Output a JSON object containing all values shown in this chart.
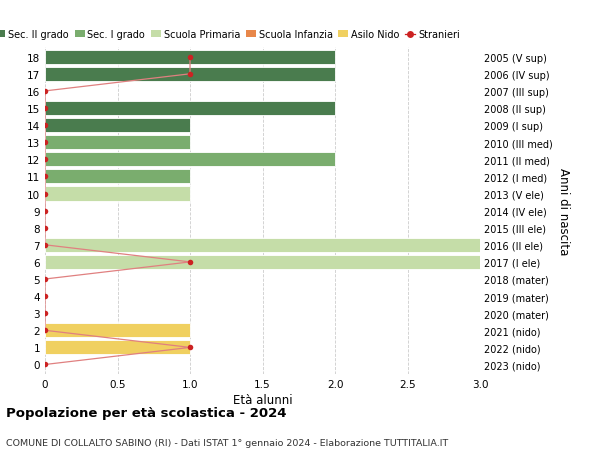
{
  "ages": [
    18,
    17,
    16,
    15,
    14,
    13,
    12,
    11,
    10,
    9,
    8,
    7,
    6,
    5,
    4,
    3,
    2,
    1,
    0
  ],
  "right_labels": [
    "2005 (V sup)",
    "2006 (IV sup)",
    "2007 (III sup)",
    "2008 (II sup)",
    "2009 (I sup)",
    "2010 (III med)",
    "2011 (II med)",
    "2012 (I med)",
    "2013 (V ele)",
    "2014 (IV ele)",
    "2015 (III ele)",
    "2016 (II ele)",
    "2017 (I ele)",
    "2018 (mater)",
    "2019 (mater)",
    "2020 (mater)",
    "2021 (nido)",
    "2022 (nido)",
    "2023 (nido)"
  ],
  "bars": [
    {
      "age": 18,
      "value": 2,
      "color": "#4a7c4e"
    },
    {
      "age": 17,
      "value": 2,
      "color": "#4a7c4e"
    },
    {
      "age": 16,
      "value": 0,
      "color": "#4a7c4e"
    },
    {
      "age": 15,
      "value": 2,
      "color": "#4a7c4e"
    },
    {
      "age": 14,
      "value": 1,
      "color": "#4a7c4e"
    },
    {
      "age": 13,
      "value": 1,
      "color": "#7aad6e"
    },
    {
      "age": 12,
      "value": 2,
      "color": "#7aad6e"
    },
    {
      "age": 11,
      "value": 1,
      "color": "#7aad6e"
    },
    {
      "age": 10,
      "value": 1,
      "color": "#c5dda8"
    },
    {
      "age": 9,
      "value": 0,
      "color": "#c5dda8"
    },
    {
      "age": 8,
      "value": 0,
      "color": "#c5dda8"
    },
    {
      "age": 7,
      "value": 3,
      "color": "#c5dda8"
    },
    {
      "age": 6,
      "value": 3,
      "color": "#c5dda8"
    },
    {
      "age": 5,
      "value": 0,
      "color": "#e8874a"
    },
    {
      "age": 4,
      "value": 0,
      "color": "#e8874a"
    },
    {
      "age": 3,
      "value": 0,
      "color": "#e8874a"
    },
    {
      "age": 2,
      "value": 1,
      "color": "#f0d060"
    },
    {
      "age": 1,
      "value": 1,
      "color": "#f0d060"
    },
    {
      "age": 0,
      "value": 0,
      "color": "#f0d060"
    }
  ],
  "stranieri_points": [
    {
      "age": 18,
      "value": 1
    },
    {
      "age": 17,
      "value": 1
    },
    {
      "age": 16,
      "value": 0
    },
    {
      "age": 15,
      "value": 0
    },
    {
      "age": 14,
      "value": 0
    },
    {
      "age": 13,
      "value": 0
    },
    {
      "age": 12,
      "value": 0
    },
    {
      "age": 11,
      "value": 0
    },
    {
      "age": 10,
      "value": 0
    },
    {
      "age": 9,
      "value": 0
    },
    {
      "age": 8,
      "value": 0
    },
    {
      "age": 7,
      "value": 0
    },
    {
      "age": 6,
      "value": 1
    },
    {
      "age": 5,
      "value": 0
    },
    {
      "age": 4,
      "value": 0
    },
    {
      "age": 3,
      "value": 0
    },
    {
      "age": 2,
      "value": 0
    },
    {
      "age": 1,
      "value": 1
    },
    {
      "age": 0,
      "value": 0
    }
  ],
  "xlim": [
    0,
    3.0
  ],
  "xticks": [
    0,
    0.5,
    1.0,
    1.5,
    2.0,
    2.5,
    3.0
  ],
  "ylim": [
    -0.55,
    18.55
  ],
  "xlabel": "Età alunni",
  "ylabel_right": "Anni di nascita",
  "title": "Popolazione per età scolastica - 2024",
  "subtitle": "COMUNE DI COLLALTO SABINO (RI) - Dati ISTAT 1° gennaio 2024 - Elaborazione TUTTITALIA.IT",
  "legend_items": [
    {
      "label": "Sec. II grado",
      "color": "#4a7c4e"
    },
    {
      "label": "Sec. I grado",
      "color": "#7aad6e"
    },
    {
      "label": "Scuola Primaria",
      "color": "#c5dda8"
    },
    {
      "label": "Scuola Infanzia",
      "color": "#e8874a"
    },
    {
      "label": "Asilo Nido",
      "color": "#f0d060"
    },
    {
      "label": "Stranieri",
      "color": "#cc2222"
    }
  ],
  "bar_height": 0.82,
  "grid_color": "#cccccc",
  "bg_color": "#ffffff",
  "stranieri_color": "#cc2222",
  "stranieri_line_color": "#e08080"
}
